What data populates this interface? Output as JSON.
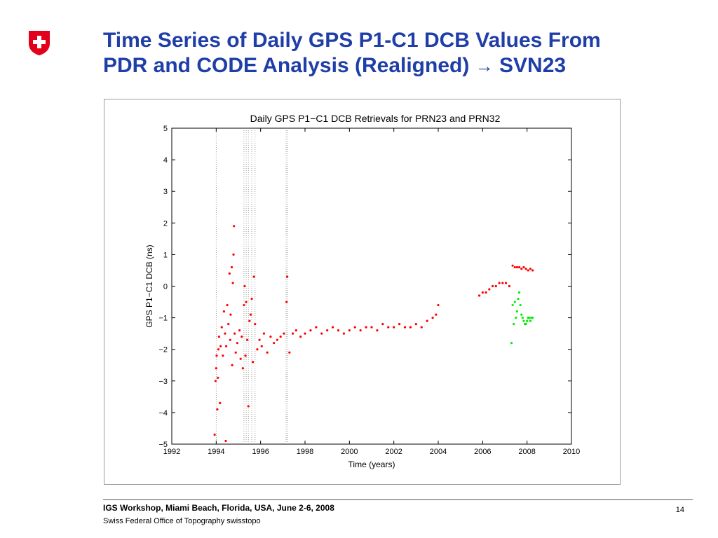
{
  "slide": {
    "title_line1": "Time Series of Daily GPS P1-C1 DCB Values From",
    "title_line2": "PDR and CODE Analysis (Realigned)",
    "title_arrow": "→",
    "title_suffix": "SVN23",
    "footer_event": "IGS Workshop, Miami Beach, Florida, USA, June 2-6, 2008",
    "footer_org": "Swiss Federal Office of Topography swisstopo",
    "page_number": "14"
  },
  "logo": {
    "icon": "swiss-cross-shield-icon",
    "color": "#e2001a"
  },
  "chart_data": {
    "type": "scatter",
    "title": "Daily GPS P1−C1 DCB Retrievals for PRN23 and PRN32",
    "xlabel": "Time (years)",
    "ylabel": "GPS P1−C1 DCB (ns)",
    "xlim": [
      1992,
      2010
    ],
    "ylim": [
      -5,
      5
    ],
    "xticks": [
      1992,
      1994,
      1996,
      1998,
      2000,
      2002,
      2004,
      2006,
      2008,
      2010
    ],
    "yticks": [
      -5,
      -4,
      -3,
      -2,
      -1,
      0,
      1,
      2,
      3,
      4,
      5
    ],
    "grid": false,
    "legend": "none",
    "vertical_dotted_lines": [
      1994.0,
      1995.25,
      1995.35,
      1995.45,
      1995.6,
      1995.75,
      1997.15,
      1997.2
    ],
    "series": [
      {
        "color": "#ff0000",
        "points": [
          [
            1993.93,
            -4.7
          ],
          [
            1993.97,
            -3.0
          ],
          [
            1994.0,
            -2.6
          ],
          [
            1994.02,
            -2.2
          ],
          [
            1994.05,
            -3.9
          ],
          [
            1994.08,
            -2.9
          ],
          [
            1994.1,
            -2.0
          ],
          [
            1994.13,
            -1.6
          ],
          [
            1994.17,
            -3.7
          ],
          [
            1994.2,
            -1.9
          ],
          [
            1994.25,
            -1.3
          ],
          [
            1994.3,
            -2.2
          ],
          [
            1994.35,
            -0.8
          ],
          [
            1994.4,
            -1.5
          ],
          [
            1994.43,
            -4.9
          ],
          [
            1994.45,
            -1.9
          ],
          [
            1994.5,
            -0.6
          ],
          [
            1994.55,
            -1.2
          ],
          [
            1994.6,
            0.4
          ],
          [
            1994.63,
            -1.7
          ],
          [
            1994.65,
            -0.9
          ],
          [
            1994.7,
            0.6
          ],
          [
            1994.72,
            -2.5
          ],
          [
            1994.75,
            0.1
          ],
          [
            1994.78,
            1.0
          ],
          [
            1994.8,
            1.9
          ],
          [
            1994.83,
            -1.5
          ],
          [
            1994.88,
            -2.1
          ],
          [
            1994.95,
            -1.8
          ],
          [
            1995.05,
            -1.4
          ],
          [
            1995.1,
            -2.3
          ],
          [
            1995.15,
            -1.6
          ],
          [
            1995.2,
            -2.6
          ],
          [
            1995.25,
            -0.6
          ],
          [
            1995.28,
            0.0
          ],
          [
            1995.32,
            -2.2
          ],
          [
            1995.35,
            -0.5
          ],
          [
            1995.4,
            -1.7
          ],
          [
            1995.45,
            -3.8
          ],
          [
            1995.5,
            -1.1
          ],
          [
            1995.55,
            -0.9
          ],
          [
            1995.6,
            -0.4
          ],
          [
            1995.65,
            -2.4
          ],
          [
            1995.7,
            0.3
          ],
          [
            1995.75,
            -1.2
          ],
          [
            1995.85,
            -2.0
          ],
          [
            1995.95,
            -1.7
          ],
          [
            1996.05,
            -1.9
          ],
          [
            1996.15,
            -1.5
          ],
          [
            1996.3,
            -2.1
          ],
          [
            1996.45,
            -1.6
          ],
          [
            1996.6,
            -1.8
          ],
          [
            1996.75,
            -1.7
          ],
          [
            1996.9,
            -1.6
          ],
          [
            1997.05,
            -1.5
          ],
          [
            1997.17,
            -0.5
          ],
          [
            1997.2,
            0.3
          ],
          [
            1997.3,
            -2.1
          ],
          [
            1997.45,
            -1.5
          ],
          [
            1997.6,
            -1.4
          ],
          [
            1997.8,
            -1.6
          ],
          [
            1998.0,
            -1.5
          ],
          [
            1998.25,
            -1.4
          ],
          [
            1998.5,
            -1.3
          ],
          [
            1998.75,
            -1.5
          ],
          [
            1999.0,
            -1.4
          ],
          [
            1999.25,
            -1.3
          ],
          [
            1999.5,
            -1.4
          ],
          [
            1999.75,
            -1.5
          ],
          [
            2000.0,
            -1.4
          ],
          [
            2000.25,
            -1.3
          ],
          [
            2000.5,
            -1.4
          ],
          [
            2000.75,
            -1.3
          ],
          [
            2001.0,
            -1.3
          ],
          [
            2001.25,
            -1.4
          ],
          [
            2001.5,
            -1.2
          ],
          [
            2001.75,
            -1.3
          ],
          [
            2002.0,
            -1.3
          ],
          [
            2002.25,
            -1.2
          ],
          [
            2002.5,
            -1.3
          ],
          [
            2002.75,
            -1.3
          ],
          [
            2003.0,
            -1.2
          ],
          [
            2003.25,
            -1.3
          ],
          [
            2003.5,
            -1.1
          ],
          [
            2003.75,
            -1.0
          ],
          [
            2003.9,
            -0.9
          ],
          [
            2004.0,
            -0.6
          ],
          [
            2005.85,
            -0.3
          ],
          [
            2006.0,
            -0.2
          ],
          [
            2006.15,
            -0.2
          ],
          [
            2006.3,
            -0.1
          ],
          [
            2006.45,
            0.0
          ],
          [
            2006.6,
            0.0
          ],
          [
            2006.75,
            0.1
          ],
          [
            2006.9,
            0.1
          ],
          [
            2007.05,
            0.1
          ],
          [
            2007.2,
            0.0
          ],
          [
            2007.35,
            0.65
          ],
          [
            2007.45,
            0.6
          ],
          [
            2007.55,
            0.6
          ],
          [
            2007.65,
            0.6
          ],
          [
            2007.75,
            0.55
          ],
          [
            2007.85,
            0.6
          ],
          [
            2007.95,
            0.55
          ],
          [
            2008.05,
            0.5
          ],
          [
            2008.15,
            0.55
          ],
          [
            2008.25,
            0.5
          ]
        ]
      },
      {
        "color": "#00ee00",
        "points": [
          [
            2007.3,
            -1.8
          ],
          [
            2007.35,
            -0.6
          ],
          [
            2007.4,
            -1.2
          ],
          [
            2007.45,
            -0.5
          ],
          [
            2007.5,
            -1.0
          ],
          [
            2007.55,
            -0.8
          ],
          [
            2007.6,
            -0.4
          ],
          [
            2007.65,
            -0.2
          ],
          [
            2007.7,
            -0.6
          ],
          [
            2007.75,
            -0.9
          ],
          [
            2007.8,
            -1.0
          ],
          [
            2007.85,
            -1.1
          ],
          [
            2007.9,
            -1.2
          ],
          [
            2007.95,
            -1.2
          ],
          [
            2008.0,
            -1.1
          ],
          [
            2008.05,
            -1.0
          ],
          [
            2008.1,
            -1.0
          ],
          [
            2008.15,
            -1.1
          ],
          [
            2008.2,
            -1.0
          ],
          [
            2008.25,
            -1.0
          ]
        ]
      }
    ]
  }
}
